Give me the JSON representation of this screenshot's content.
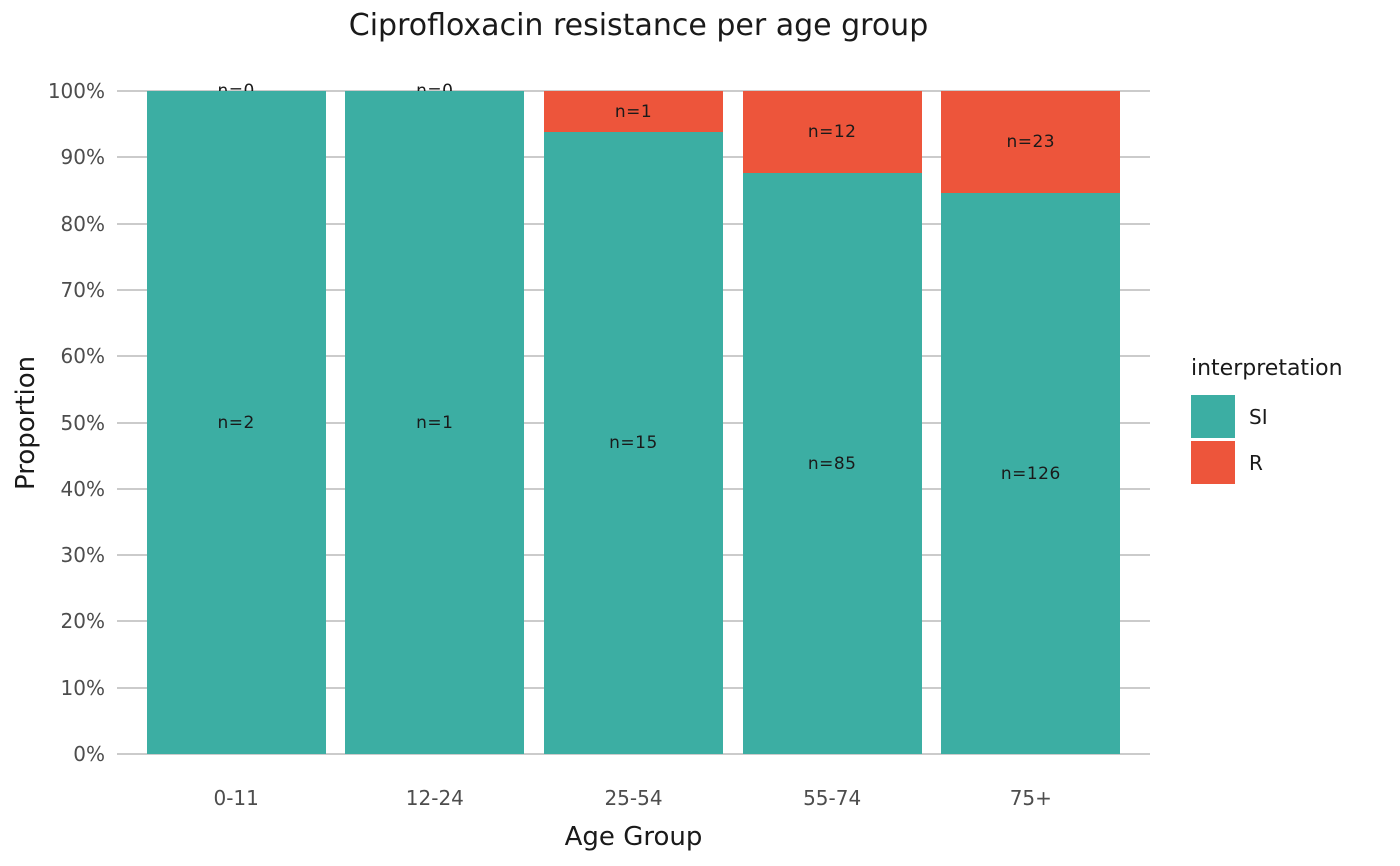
{
  "chart_data": {
    "type": "bar",
    "variant": "stacked-percent",
    "title": "Ciprofloxacin resistance per age group",
    "xlabel": "Age Group",
    "ylabel": "Proportion",
    "categories": [
      "0-11",
      "12-24",
      "25-54",
      "55-74",
      "75+"
    ],
    "series": [
      {
        "name": "SI",
        "color": "#3CAEA3",
        "counts": [
          2,
          1,
          15,
          85,
          126
        ],
        "labels": [
          "n=2",
          "n=1",
          "n=15",
          "n=85",
          "n=126"
        ]
      },
      {
        "name": "R",
        "color": "#ED553B",
        "counts": [
          0,
          0,
          1,
          12,
          23
        ],
        "labels": [
          "n=0",
          "n=0",
          "n=1",
          "n=12",
          "n=23"
        ]
      }
    ],
    "stack_order_top_to_bottom": [
      "R",
      "SI"
    ],
    "y_ticks": [
      "0%",
      "10%",
      "20%",
      "30%",
      "40%",
      "50%",
      "60%",
      "70%",
      "80%",
      "90%",
      "100%"
    ],
    "ylim": [
      0,
      100
    ],
    "grid": true,
    "legend": {
      "title": "interpretation",
      "position": "right",
      "entries": [
        "SI",
        "R"
      ]
    }
  },
  "colors": {
    "si": "#3CAEA3",
    "r": "#ED553B",
    "gridline": "#CBCBCB",
    "tick_text": "#4D4D4D",
    "text": "#1A1A1A",
    "background": "#FFFFFF"
  }
}
